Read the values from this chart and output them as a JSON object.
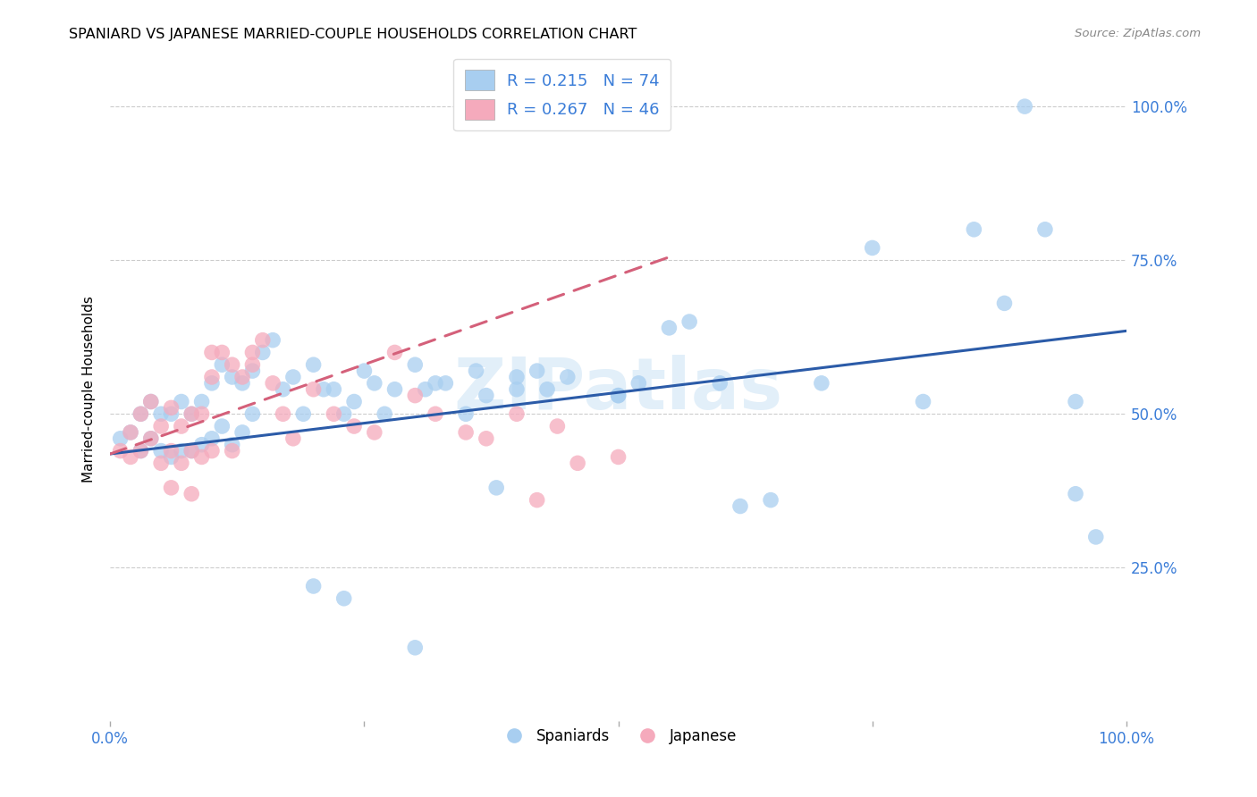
{
  "title": "SPANIARD VS JAPANESE MARRIED-COUPLE HOUSEHOLDS CORRELATION CHART",
  "source": "Source: ZipAtlas.com",
  "ylabel": "Married-couple Households",
  "legend_label_blue": "Spaniards",
  "legend_label_pink": "Japanese",
  "blue_color": "#A8CEF0",
  "pink_color": "#F5AABC",
  "trend_blue_color": "#2B5BA8",
  "trend_pink_color": "#D4607A",
  "watermark": "ZIPatlas",
  "axis_label_color": "#3B7DD8",
  "blue_R": 0.215,
  "blue_N": 74,
  "pink_R": 0.267,
  "pink_N": 46,
  "blue_trend_x0": 0.0,
  "blue_trend_y0": 0.435,
  "blue_trend_x1": 1.0,
  "blue_trend_y1": 0.635,
  "pink_trend_x0": 0.0,
  "pink_trend_y0": 0.435,
  "pink_trend_x1": 0.55,
  "pink_trend_y1": 0.755,
  "xlim": [
    0.0,
    1.0
  ],
  "ylim": [
    0.0,
    1.08
  ],
  "blue_x": [
    0.01,
    0.02,
    0.03,
    0.03,
    0.04,
    0.04,
    0.05,
    0.05,
    0.06,
    0.06,
    0.07,
    0.07,
    0.08,
    0.08,
    0.09,
    0.09,
    0.1,
    0.1,
    0.11,
    0.11,
    0.12,
    0.12,
    0.13,
    0.13,
    0.14,
    0.14,
    0.15,
    0.16,
    0.17,
    0.18,
    0.19,
    0.2,
    0.21,
    0.22,
    0.23,
    0.24,
    0.25,
    0.26,
    0.27,
    0.28,
    0.3,
    0.31,
    0.32,
    0.33,
    0.35,
    0.36,
    0.37,
    0.38,
    0.4,
    0.4,
    0.42,
    0.43,
    0.45,
    0.5,
    0.5,
    0.52,
    0.55,
    0.57,
    0.6,
    0.62,
    0.65,
    0.7,
    0.75,
    0.8,
    0.85,
    0.88,
    0.9,
    0.92,
    0.95,
    0.97,
    0.2,
    0.23,
    0.3,
    0.95
  ],
  "blue_y": [
    0.46,
    0.47,
    0.5,
    0.44,
    0.52,
    0.46,
    0.5,
    0.44,
    0.5,
    0.43,
    0.52,
    0.44,
    0.5,
    0.44,
    0.52,
    0.45,
    0.55,
    0.46,
    0.58,
    0.48,
    0.56,
    0.45,
    0.55,
    0.47,
    0.57,
    0.5,
    0.6,
    0.62,
    0.54,
    0.56,
    0.5,
    0.58,
    0.54,
    0.54,
    0.5,
    0.52,
    0.57,
    0.55,
    0.5,
    0.54,
    0.58,
    0.54,
    0.55,
    0.55,
    0.5,
    0.57,
    0.53,
    0.38,
    0.56,
    0.54,
    0.57,
    0.54,
    0.56,
    0.53,
    0.53,
    0.55,
    0.64,
    0.65,
    0.55,
    0.35,
    0.36,
    0.55,
    0.77,
    0.52,
    0.8,
    0.68,
    1.0,
    0.8,
    0.37,
    0.3,
    0.22,
    0.2,
    0.12,
    0.52
  ],
  "pink_x": [
    0.01,
    0.02,
    0.02,
    0.03,
    0.03,
    0.04,
    0.04,
    0.05,
    0.05,
    0.06,
    0.06,
    0.07,
    0.07,
    0.08,
    0.08,
    0.09,
    0.09,
    0.1,
    0.1,
    0.11,
    0.12,
    0.12,
    0.13,
    0.14,
    0.15,
    0.16,
    0.17,
    0.18,
    0.2,
    0.22,
    0.24,
    0.26,
    0.28,
    0.3,
    0.32,
    0.35,
    0.37,
    0.4,
    0.42,
    0.44,
    0.46,
    0.5,
    0.06,
    0.08,
    0.1,
    0.14
  ],
  "pink_y": [
    0.44,
    0.47,
    0.43,
    0.5,
    0.44,
    0.52,
    0.46,
    0.48,
    0.42,
    0.51,
    0.44,
    0.48,
    0.42,
    0.5,
    0.44,
    0.5,
    0.43,
    0.56,
    0.44,
    0.6,
    0.58,
    0.44,
    0.56,
    0.6,
    0.62,
    0.55,
    0.5,
    0.46,
    0.54,
    0.5,
    0.48,
    0.47,
    0.6,
    0.53,
    0.5,
    0.47,
    0.46,
    0.5,
    0.36,
    0.48,
    0.42,
    0.43,
    0.38,
    0.37,
    0.6,
    0.58
  ]
}
